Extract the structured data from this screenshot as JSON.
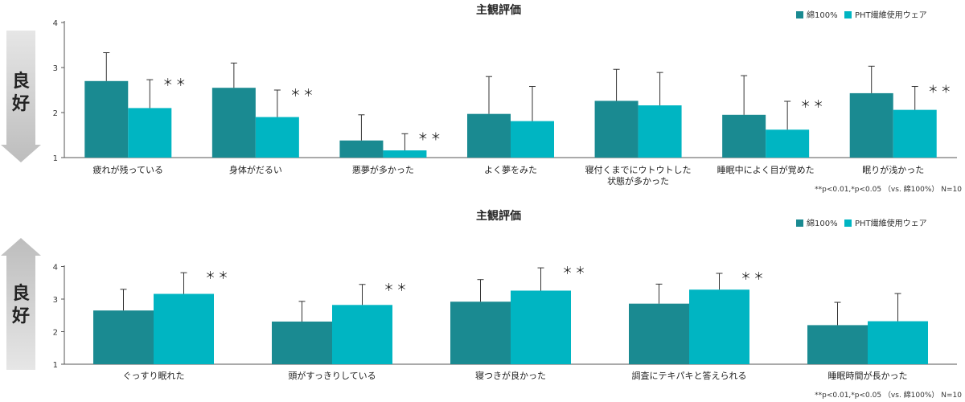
{
  "good_label": [
    "良",
    "好"
  ],
  "chart_data": [
    {
      "type": "bar",
      "title": "主観評価",
      "ylim": [
        1,
        4
      ],
      "yticks": [
        "1",
        "2",
        "3",
        "4"
      ],
      "arrow": "down",
      "legend_position": "top-right",
      "note": "**p<0.01,*p<0.05 （vs. 綿100%） N=10",
      "categories": [
        [
          "疲れが残っている"
        ],
        [
          "身体がだるい"
        ],
        [
          "悪夢が多かった"
        ],
        [
          "よく夢をみた"
        ],
        [
          "寝付くまでにウトウトした",
          "状態が多かった"
        ],
        [
          "睡眠中によく目が覚めた"
        ],
        [
          "眠りが浅かった"
        ]
      ],
      "series": [
        {
          "name": "綿100%",
          "color": "#1a8a91",
          "values": [
            2.7,
            2.55,
            1.38,
            1.97,
            2.26,
            1.95,
            2.43
          ],
          "errors": [
            0.63,
            0.55,
            0.57,
            0.83,
            0.7,
            0.87,
            0.6
          ]
        },
        {
          "name": "PHT繊維使用ウェア",
          "color": "#00b5c2",
          "values": [
            2.1,
            1.9,
            1.16,
            1.81,
            2.16,
            1.62,
            2.06
          ],
          "errors": [
            0.63,
            0.6,
            0.37,
            0.77,
            0.73,
            0.63,
            0.52
          ]
        }
      ],
      "significance": [
        "＊＊",
        "＊＊",
        "＊＊",
        "",
        "",
        "＊＊",
        "＊＊"
      ]
    },
    {
      "type": "bar",
      "title": "主観評価",
      "ylim": [
        1,
        4.5
      ],
      "yticks": [
        "1",
        "2",
        "3",
        "4"
      ],
      "arrow": "up",
      "legend_position": "top-right",
      "note": "**p<0.01,*p<0.05 （vs. 綿100%） N=10",
      "categories": [
        [
          "ぐっすり眠れた"
        ],
        [
          "頭がすっきりしている"
        ],
        [
          "寝つきが良かった"
        ],
        [
          "調査にテキパキと答えられる"
        ],
        [
          "睡眠時間が長かった"
        ]
      ],
      "series": [
        {
          "name": "綿100%",
          "color": "#1a8a91",
          "values": [
            2.65,
            2.31,
            2.92,
            2.86,
            2.2
          ],
          "errors": [
            0.65,
            0.62,
            0.68,
            0.6,
            0.7
          ]
        },
        {
          "name": "PHT繊維使用ウェア",
          "color": "#00b5c2",
          "values": [
            3.16,
            2.82,
            3.26,
            3.29,
            2.32
          ],
          "errors": [
            0.65,
            0.63,
            0.7,
            0.5,
            0.85
          ]
        }
      ],
      "significance": [
        "＊＊",
        "＊＊",
        "＊＊",
        "＊＊",
        ""
      ]
    }
  ]
}
